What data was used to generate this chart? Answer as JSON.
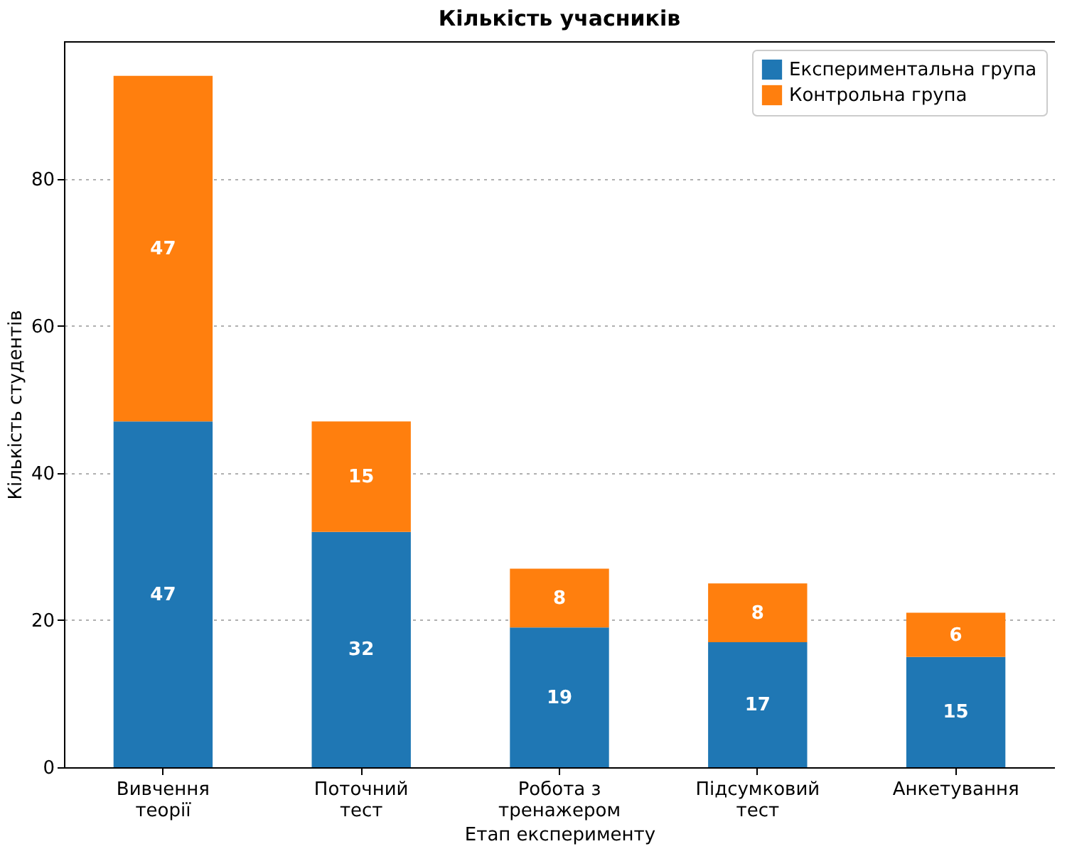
{
  "chart_data": {
    "type": "bar",
    "title": "Кількість учасників",
    "xlabel": "Етап експерименту",
    "ylabel": "Кількість студентів",
    "categories": [
      "Вивчення\nтеорії",
      "Поточний\nтест",
      "Робота з\nтренажером",
      "Підсумковий\nтест",
      "Анкетування"
    ],
    "series": [
      {
        "name": "Експериментальна група",
        "color": "#1f77b4",
        "values": [
          47,
          32,
          19,
          17,
          15
        ]
      },
      {
        "name": "Контрольна група",
        "color": "#ff7f0e",
        "values": [
          47,
          15,
          8,
          8,
          6
        ]
      }
    ],
    "stacked": true,
    "data_labels": true,
    "ylim": [
      0,
      98.7
    ],
    "yticks": [
      0,
      20,
      40,
      60,
      80
    ],
    "grid": "y",
    "legend": "top right"
  }
}
